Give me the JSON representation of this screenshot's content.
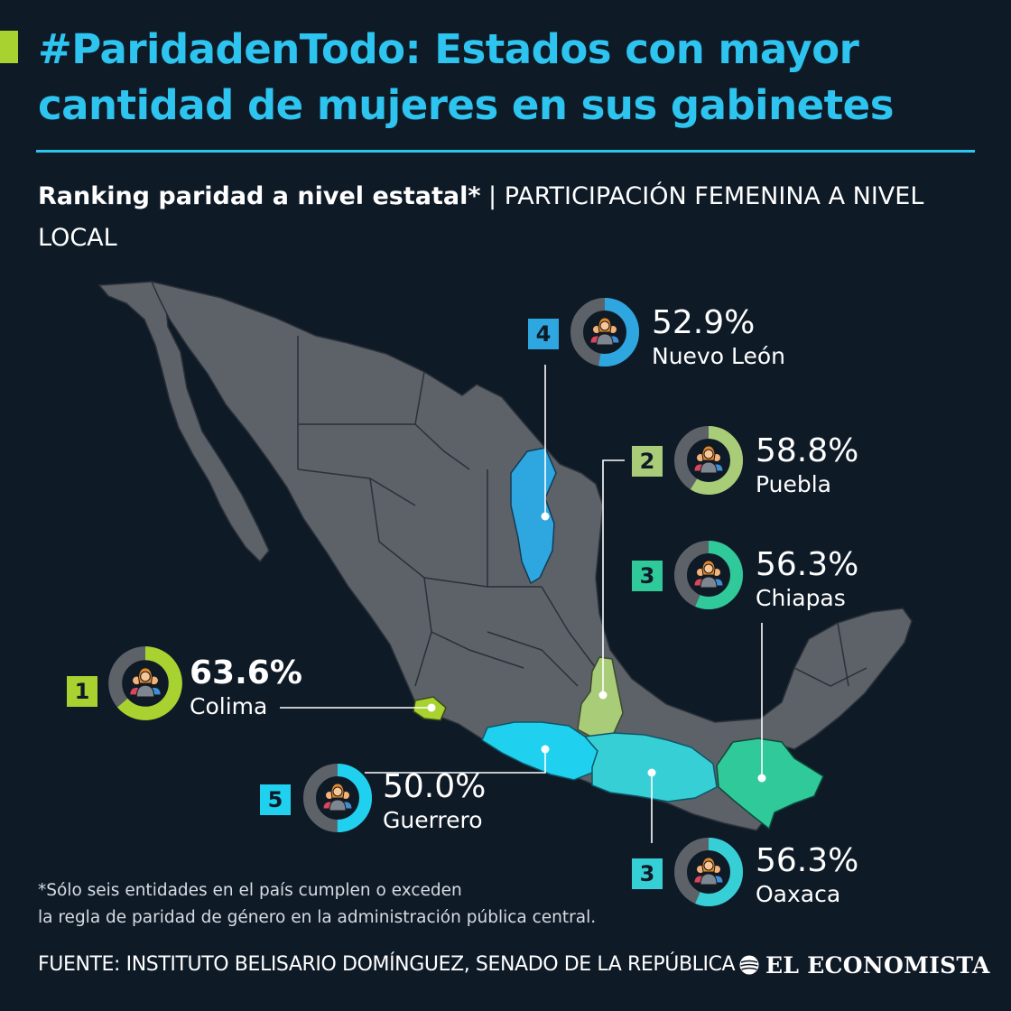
{
  "header": {
    "title": "#ParidadenTodo: Estados con mayor cantidad de mujeres en sus gabinetes",
    "subtitle_bold": "Ranking paridad a nivel estatal*",
    "subtitle_separator": " | ",
    "subtitle_rest": "PARTICIPACIÓN FEMENINA A NIVEL LOCAL"
  },
  "colors": {
    "background": "#0f1a27",
    "title": "#2ec4f0",
    "map_states": "#5d6168",
    "donut_track": "#5d6168",
    "nuevo_leon": "#2ea6e0",
    "puebla": "#a9cc78",
    "chiapas": "#2fc99a",
    "oaxaca": "#37cfd6",
    "guerrero": "#1fd1ef",
    "colima": "#a8d22f"
  },
  "icon": "women-group-icon",
  "rankings": [
    {
      "key": "nuevo_leon",
      "rank": "4",
      "percent_label": "52.9%",
      "value": 52.9,
      "state": "Nuevo León",
      "color": "#2ea6e0"
    },
    {
      "key": "puebla",
      "rank": "2",
      "percent_label": "58.8%",
      "value": 58.8,
      "state": "Puebla",
      "color": "#a9cc78"
    },
    {
      "key": "chiapas",
      "rank": "3",
      "percent_label": "56.3%",
      "value": 56.3,
      "state": "Chiapas",
      "color": "#2fc99a"
    },
    {
      "key": "colima",
      "rank": "1",
      "percent_label": "63.6%",
      "value": 63.6,
      "state": "Colima",
      "color": "#a8d22f"
    },
    {
      "key": "guerrero",
      "rank": "5",
      "percent_label": "50.0%",
      "value": 50.0,
      "state": "Guerrero",
      "color": "#1fd1ef"
    },
    {
      "key": "oaxaca",
      "rank": "3",
      "percent_label": "56.3%",
      "value": 56.3,
      "state": "Oaxaca",
      "color": "#37cfd6"
    }
  ],
  "footer": {
    "note_line1": "*Sólo seis entidades en el país cumplen o exceden",
    "note_line2": "la regla de paridad de género en la administración pública central.",
    "source": "FUENTE: INSTITUTO BELISARIO DOMÍNGUEZ, SENADO DE LA REPÚBLICA",
    "brand": "EL ECONOMISTA"
  }
}
